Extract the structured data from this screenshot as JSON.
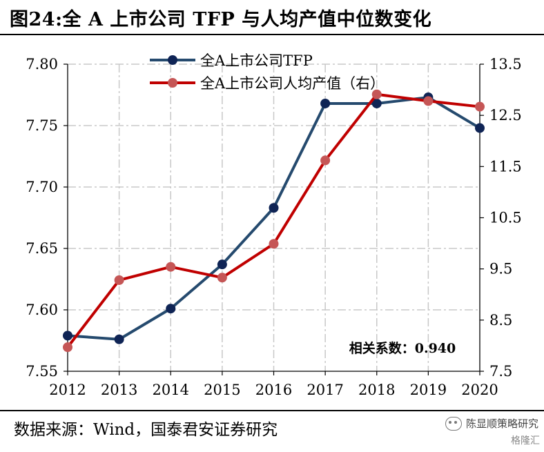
{
  "title": "图24:全 A 上市公司 TFP 与人均产值中位数变化",
  "source": "数据来源：Wind，国泰君安证券研究",
  "watermark": {
    "account": "陈显顺策略研究",
    "brand": "格隆汇"
  },
  "colors": {
    "tfp_line": "#254A6E",
    "tfp_marker": "#0F2455",
    "output_line": "#C00000",
    "output_marker": "#C55656",
    "grid": "#C8C8C8"
  },
  "chart_data": {
    "type": "line",
    "categories": [
      "2012",
      "2013",
      "2014",
      "2015",
      "2016",
      "2017",
      "2018",
      "2019",
      "2020"
    ],
    "series": [
      {
        "name": "全A上市公司TFP",
        "axis": "left",
        "values": [
          7.579,
          7.576,
          7.601,
          7.637,
          7.683,
          7.768,
          7.768,
          7.773,
          7.748
        ]
      },
      {
        "name": "全A上市公司人均产值（右）",
        "axis": "right",
        "values": [
          7.97,
          9.28,
          9.54,
          9.33,
          9.99,
          11.62,
          12.91,
          12.78,
          12.67
        ]
      }
    ],
    "y_left": {
      "min": 7.55,
      "max": 7.8,
      "ticks": [
        "7.55",
        "7.60",
        "7.65",
        "7.70",
        "7.75",
        "7.80"
      ]
    },
    "y_right": {
      "min": 7.5,
      "max": 13.5,
      "ticks": [
        "7.5",
        "8.5",
        "9.5",
        "10.5",
        "11.5",
        "12.5",
        "13.5"
      ]
    },
    "annotation": "相关系数：0.940",
    "grid": true,
    "legend": "top-left"
  }
}
